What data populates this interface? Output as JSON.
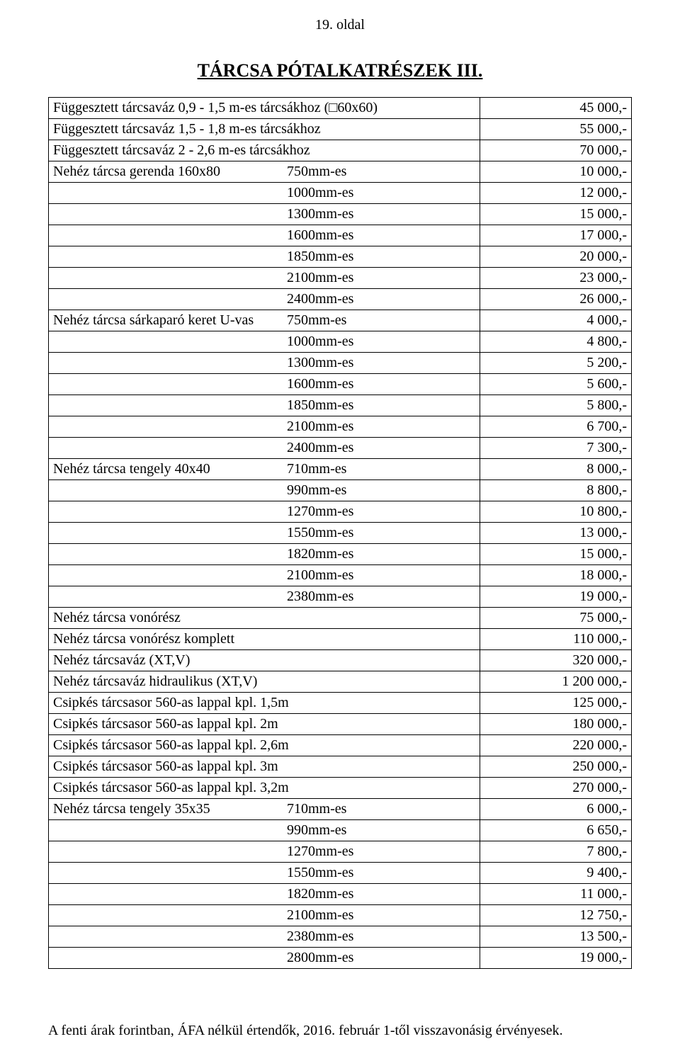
{
  "page_number": "19. oldal",
  "title": "TÁRCSA PÓTALKATRÉSZEK  III.",
  "footer": "A fenti árak forintban, ÁFA nélkül értendők, 2016. február 1-től visszavonásig érvényesek.",
  "table": {
    "col_widths_pct": [
      74,
      26
    ],
    "rows": [
      {
        "lead": "Függesztett tárcsaváz 0,9 - 1,5 m-es tárcsákhoz (□60x60)",
        "spec": "",
        "spec_pad": 0,
        "price": "45 000,-"
      },
      {
        "lead": "Függesztett tárcsaváz 1,5 - 1,8 m-es tárcsákhoz",
        "spec": "",
        "spec_pad": 0,
        "price": "55 000,-"
      },
      {
        "lead": "Függesztett tárcsaváz  2  -  2,6 m-es tárcsákhoz",
        "spec": "",
        "spec_pad": 0,
        "price": "70 000,-"
      },
      {
        "lead": "Nehéz tárcsa gerenda 160x80",
        "spec": "750mm-es",
        "spec_pad": 330,
        "price": "10 000,-"
      },
      {
        "lead": "",
        "spec": "1000mm-es",
        "spec_pad": 330,
        "price": "12 000,-"
      },
      {
        "lead": "",
        "spec": "1300mm-es",
        "spec_pad": 330,
        "price": "15 000,-"
      },
      {
        "lead": "",
        "spec": "1600mm-es",
        "spec_pad": 330,
        "price": "17 000,-"
      },
      {
        "lead": "",
        "spec": "1850mm-es",
        "spec_pad": 330,
        "price": "20 000,-"
      },
      {
        "lead": "",
        "spec": "2100mm-es",
        "spec_pad": 330,
        "price": "23 000,-"
      },
      {
        "lead": "",
        "spec": "2400mm-es",
        "spec_pad": 330,
        "price": "26 000,-"
      },
      {
        "lead": "Nehéz tárcsa sárkaparó keret U-vas",
        "spec": "750mm-es",
        "spec_pad": 330,
        "price": "4 000,-"
      },
      {
        "lead": "",
        "spec": "1000mm-es",
        "spec_pad": 330,
        "price": "4 800,-"
      },
      {
        "lead": "",
        "spec": "1300mm-es",
        "spec_pad": 330,
        "price": "5 200,-"
      },
      {
        "lead": "",
        "spec": "1600mm-es",
        "spec_pad": 330,
        "price": "5 600,-"
      },
      {
        "lead": "",
        "spec": "1850mm-es",
        "spec_pad": 330,
        "price": "5 800,-"
      },
      {
        "lead": "",
        "spec": "2100mm-es",
        "spec_pad": 330,
        "price": "6 700,-"
      },
      {
        "lead": "",
        "spec": "2400mm-es",
        "spec_pad": 330,
        "price": "7 300,-"
      },
      {
        "lead": "Nehéz tárcsa tengely 40x40",
        "spec": "710mm-es",
        "spec_pad": 330,
        "price": "8 000,-"
      },
      {
        "lead": "",
        "spec": "990mm-es",
        "spec_pad": 330,
        "price": "8 800,-"
      },
      {
        "lead": "",
        "spec": "1270mm-es",
        "spec_pad": 330,
        "price": "10 800,-"
      },
      {
        "lead": "",
        "spec": "1550mm-es",
        "spec_pad": 330,
        "price": "13 000,-"
      },
      {
        "lead": "",
        "spec": "1820mm-es",
        "spec_pad": 330,
        "price": "15 000,-"
      },
      {
        "lead": "",
        "spec": "2100mm-es",
        "spec_pad": 330,
        "price": "18 000,-"
      },
      {
        "lead": "",
        "spec": "2380mm-es",
        "spec_pad": 330,
        "price": "19 000,-"
      },
      {
        "lead": "Nehéz tárcsa vonórész",
        "spec": "",
        "spec_pad": 0,
        "price": "75 000,-"
      },
      {
        "lead": "Nehéz tárcsa vonórész komplett",
        "spec": "",
        "spec_pad": 0,
        "price": "110 000,-"
      },
      {
        "lead": "Nehéz tárcsaváz (XT,V)",
        "spec": "",
        "spec_pad": 0,
        "price": "320 000,-"
      },
      {
        "lead": "Nehéz tárcsaváz hidraulikus (XT,V)",
        "spec": "",
        "spec_pad": 0,
        "price": "1 200 000,-"
      },
      {
        "lead": "Csipkés tárcsasor 560-as lappal kpl. 1,5m",
        "spec": "",
        "spec_pad": 0,
        "price": "125 000,-"
      },
      {
        "lead": "Csipkés tárcsasor 560-as lappal kpl. 2m",
        "spec": "",
        "spec_pad": 0,
        "price": "180 000,-"
      },
      {
        "lead": "Csipkés tárcsasor 560-as lappal kpl. 2,6m",
        "spec": "",
        "spec_pad": 0,
        "price": "220 000,-"
      },
      {
        "lead": "Csipkés tárcsasor 560-as lappal kpl. 3m",
        "spec": "",
        "spec_pad": 0,
        "price": "250 000,-"
      },
      {
        "lead": "Csipkés tárcsasor 560-as lappal kpl. 3,2m",
        "spec": "",
        "spec_pad": 0,
        "price": "270 000,-"
      },
      {
        "lead": "Nehéz tárcsa tengely 35x35",
        "spec": "710mm-es",
        "spec_pad": 330,
        "price": "6 000,-"
      },
      {
        "lead": "",
        "spec": "990mm-es",
        "spec_pad": 330,
        "price": "6 650,-"
      },
      {
        "lead": "",
        "spec": "1270mm-es",
        "spec_pad": 330,
        "price": "7 800,-"
      },
      {
        "lead": "",
        "spec": "1550mm-es",
        "spec_pad": 330,
        "price": "9 400,-"
      },
      {
        "lead": "",
        "spec": "1820mm-es",
        "spec_pad": 330,
        "price": "11 000,-"
      },
      {
        "lead": "",
        "spec": "2100mm-es",
        "spec_pad": 330,
        "price": "12 750,-"
      },
      {
        "lead": "",
        "spec": "2380mm-es",
        "spec_pad": 330,
        "price": "13 500,-"
      },
      {
        "lead": "",
        "spec": "2800mm-es",
        "spec_pad": 330,
        "price": "19 000,-"
      }
    ]
  }
}
